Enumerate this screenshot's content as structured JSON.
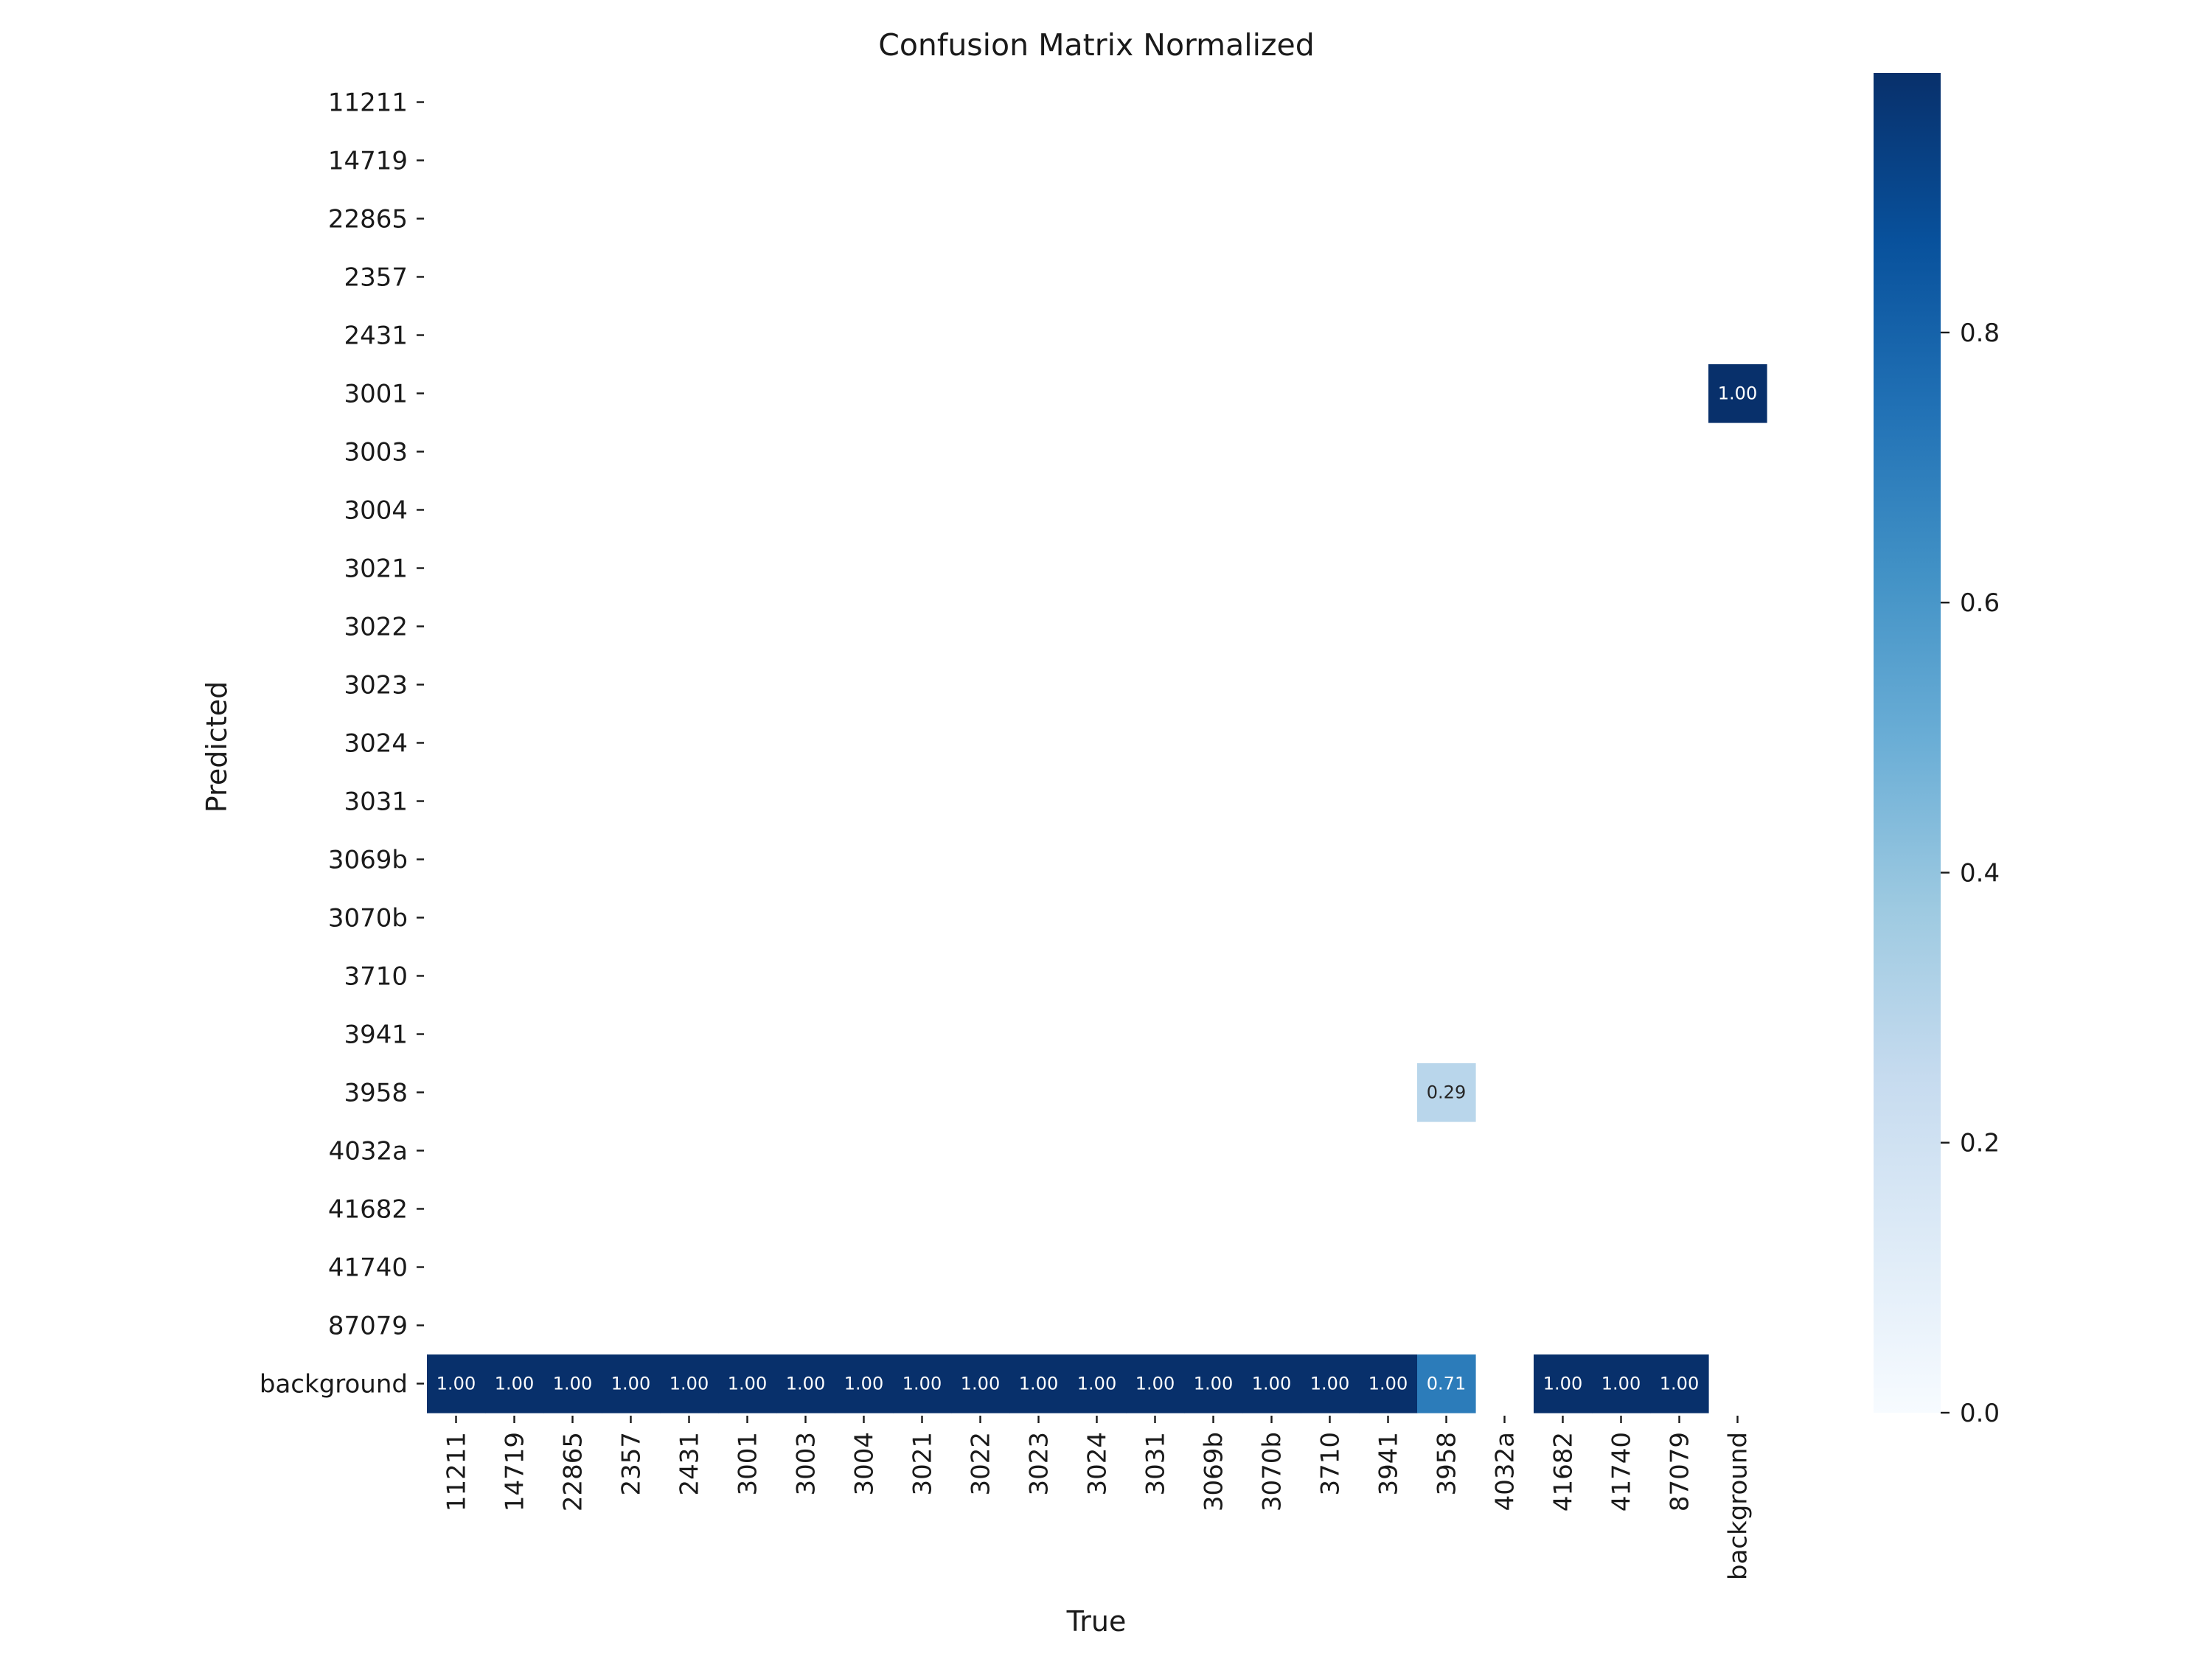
{
  "chart_data": {
    "type": "heatmap",
    "title": "Confusion Matrix Normalized",
    "xlabel": "True",
    "ylabel": "Predicted",
    "x_categories": [
      "11211",
      "14719",
      "22865",
      "2357",
      "2431",
      "3001",
      "3003",
      "3004",
      "3021",
      "3022",
      "3023",
      "3024",
      "3031",
      "3069b",
      "3070b",
      "3710",
      "3941",
      "3958",
      "4032a",
      "41682",
      "41740",
      "87079",
      "background"
    ],
    "y_categories": [
      "11211",
      "14719",
      "22865",
      "2357",
      "2431",
      "3001",
      "3003",
      "3004",
      "3021",
      "3022",
      "3023",
      "3024",
      "3031",
      "3069b",
      "3070b",
      "3710",
      "3941",
      "3958",
      "4032a",
      "41682",
      "41740",
      "87079",
      "background"
    ],
    "cells": [
      {
        "predicted": "3001",
        "true": "background",
        "value": 1.0,
        "label": "1.00"
      },
      {
        "predicted": "3958",
        "true": "3958",
        "value": 0.29,
        "label": "0.29"
      },
      {
        "predicted": "background",
        "true": "11211",
        "value": 1.0,
        "label": "1.00"
      },
      {
        "predicted": "background",
        "true": "14719",
        "value": 1.0,
        "label": "1.00"
      },
      {
        "predicted": "background",
        "true": "22865",
        "value": 1.0,
        "label": "1.00"
      },
      {
        "predicted": "background",
        "true": "2357",
        "value": 1.0,
        "label": "1.00"
      },
      {
        "predicted": "background",
        "true": "2431",
        "value": 1.0,
        "label": "1.00"
      },
      {
        "predicted": "background",
        "true": "3001",
        "value": 1.0,
        "label": "1.00"
      },
      {
        "predicted": "background",
        "true": "3003",
        "value": 1.0,
        "label": "1.00"
      },
      {
        "predicted": "background",
        "true": "3004",
        "value": 1.0,
        "label": "1.00"
      },
      {
        "predicted": "background",
        "true": "3021",
        "value": 1.0,
        "label": "1.00"
      },
      {
        "predicted": "background",
        "true": "3022",
        "value": 1.0,
        "label": "1.00"
      },
      {
        "predicted": "background",
        "true": "3023",
        "value": 1.0,
        "label": "1.00"
      },
      {
        "predicted": "background",
        "true": "3024",
        "value": 1.0,
        "label": "1.00"
      },
      {
        "predicted": "background",
        "true": "3031",
        "value": 1.0,
        "label": "1.00"
      },
      {
        "predicted": "background",
        "true": "3069b",
        "value": 1.0,
        "label": "1.00"
      },
      {
        "predicted": "background",
        "true": "3070b",
        "value": 1.0,
        "label": "1.00"
      },
      {
        "predicted": "background",
        "true": "3710",
        "value": 1.0,
        "label": "1.00"
      },
      {
        "predicted": "background",
        "true": "3941",
        "value": 1.0,
        "label": "1.00"
      },
      {
        "predicted": "background",
        "true": "3958",
        "value": 0.71,
        "label": "0.71"
      },
      {
        "predicted": "background",
        "true": "41682",
        "value": 1.0,
        "label": "1.00"
      },
      {
        "predicted": "background",
        "true": "41740",
        "value": 1.0,
        "label": "1.00"
      },
      {
        "predicted": "background",
        "true": "87079",
        "value": 1.0,
        "label": "1.00"
      }
    ],
    "colorbar": {
      "colormap": "Blues",
      "range": [
        0,
        1
      ],
      "ticks": [
        0.0,
        0.2,
        0.4,
        0.6,
        0.8
      ],
      "tick_labels": [
        "0.0",
        "0.2",
        "0.4",
        "0.6",
        "0.8"
      ]
    },
    "colors": {
      "dark_cell": "#08306b",
      "light_text": "#ffffff",
      "dark_text": "#262626"
    }
  }
}
